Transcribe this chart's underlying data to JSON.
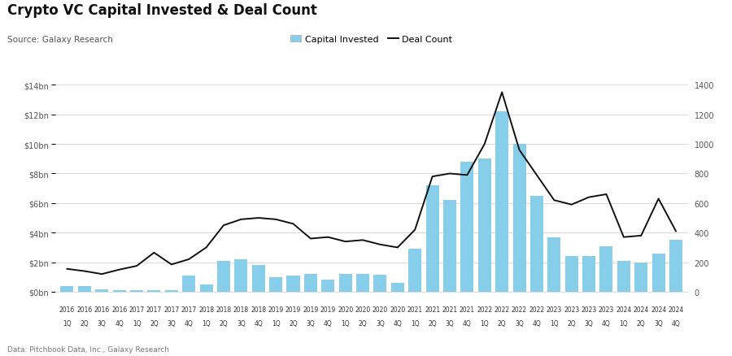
{
  "title": "Crypto VC Capital Invested & Deal Count",
  "source": "Source: Galaxy Research",
  "footnote": "Data: Pitchbook Data, Inc., Galaxy Research",
  "bar_color": "#87CEEB",
  "line_color": "#111111",
  "background_color": "#FFFFFF",
  "grid_color": "#CCCCCC",
  "year_labels": [
    "2016",
    "2016",
    "2016",
    "2016",
    "2017",
    "2017",
    "2017",
    "2017",
    "2018",
    "2018",
    "2018",
    "2018",
    "2019",
    "2019",
    "2019",
    "2019",
    "2020",
    "2020",
    "2020",
    "2020",
    "2021",
    "2021",
    "2021",
    "2021",
    "2022",
    "2022",
    "2022",
    "2022",
    "2023",
    "2023",
    "2023",
    "2023",
    "2024",
    "2024",
    "2024",
    "2024"
  ],
  "q_labels": [
    "1Q",
    "2Q",
    "3Q",
    "4Q",
    "1Q",
    "2Q",
    "3Q",
    "4Q",
    "1Q",
    "2Q",
    "3Q",
    "4Q",
    "1Q",
    "2Q",
    "3Q",
    "4Q",
    "1Q",
    "2Q",
    "3Q",
    "4Q",
    "1Q",
    "2Q",
    "3Q",
    "4Q",
    "1Q",
    "2Q",
    "3Q",
    "4Q",
    "1Q",
    "2Q",
    "3Q",
    "4Q",
    "1Q",
    "2Q",
    "3Q",
    "4Q"
  ],
  "capital_invested_bn": [
    0.4,
    0.4,
    0.15,
    0.1,
    0.1,
    0.1,
    0.1,
    1.1,
    0.5,
    2.1,
    2.2,
    1.8,
    1.0,
    1.1,
    1.2,
    0.85,
    1.2,
    1.2,
    1.15,
    0.6,
    2.9,
    7.2,
    6.2,
    8.8,
    9.0,
    12.2,
    10.0,
    6.5,
    3.7,
    2.4,
    2.4,
    3.1,
    2.1,
    2.0,
    2.6,
    3.5
  ],
  "deal_count": [
    155,
    140,
    120,
    150,
    175,
    265,
    185,
    220,
    300,
    450,
    490,
    500,
    490,
    460,
    360,
    370,
    340,
    350,
    320,
    300,
    420,
    780,
    800,
    790,
    1000,
    1350,
    960,
    790,
    620,
    590,
    640,
    660,
    370,
    380,
    630,
    410
  ],
  "ylim_left": [
    0,
    14
  ],
  "ylim_right": [
    0,
    1400
  ],
  "yticks_left": [
    0,
    2,
    4,
    6,
    8,
    10,
    12,
    14
  ],
  "yticks_right": [
    0,
    200,
    400,
    600,
    800,
    1000,
    1200,
    1400
  ],
  "ytick_labels_left": [
    "$0bn",
    "$2bn",
    "$4bn",
    "$6bn",
    "$8bn",
    "$10bn",
    "$12bn",
    "$14bn"
  ],
  "ytick_labels_right": [
    "0",
    "200",
    "400",
    "600",
    "800",
    "1000",
    "1200",
    "1400"
  ]
}
